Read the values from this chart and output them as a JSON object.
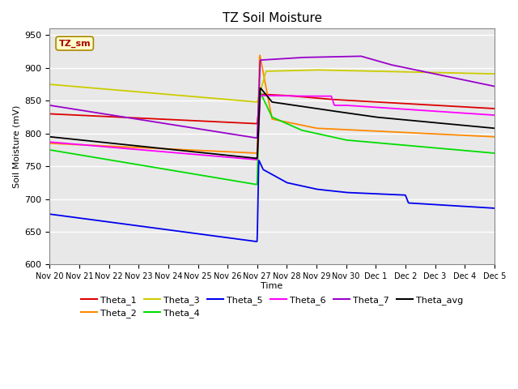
{
  "title": "TZ Soil Moisture",
  "xlabel": "Time",
  "ylabel": "Soil Moisture (mV)",
  "ylim": [
    600,
    960
  ],
  "yticks": [
    600,
    650,
    700,
    750,
    800,
    850,
    900,
    950
  ],
  "plot_bg_color": "#e8e8e8",
  "legend_box_color": "#ffffcc",
  "legend_box_text": "TZ_sm",
  "series": {
    "Theta_1": {
      "color": "#dd0000"
    },
    "Theta_2": {
      "color": "#ff8800"
    },
    "Theta_3": {
      "color": "#cccc00"
    },
    "Theta_4": {
      "color": "#00dd00"
    },
    "Theta_5": {
      "color": "#0000ee"
    },
    "Theta_6": {
      "color": "#ff00ff"
    },
    "Theta_7": {
      "color": "#9900cc"
    },
    "Theta_avg": {
      "color": "#000000"
    }
  },
  "xtick_labels": [
    "Nov 20",
    "Nov 21",
    "Nov 22",
    "Nov 23",
    "Nov 24",
    "Nov 25",
    "Nov 26",
    "Nov 27",
    "Nov 28",
    "Nov 29",
    "Nov 30",
    "Dec 1",
    "Dec 2",
    "Dec 3",
    "Dec 4",
    "Dec 5"
  ],
  "xtick_positions": [
    0,
    1,
    2,
    3,
    4,
    5,
    6,
    7,
    8,
    9,
    10,
    11,
    12,
    13,
    14,
    15
  ]
}
